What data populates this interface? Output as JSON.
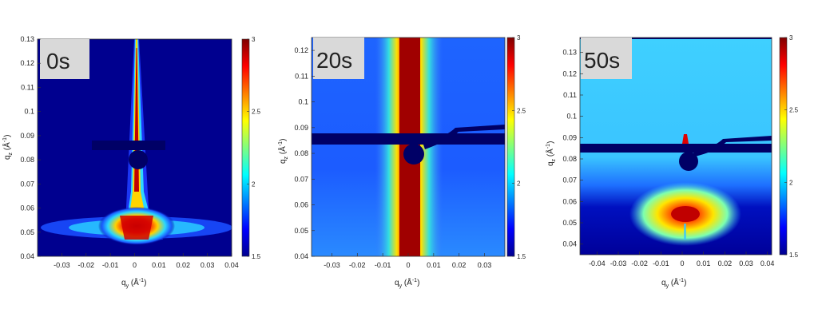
{
  "chart_data": [
    {
      "type": "heatmap",
      "time_label": "0s",
      "xlabel": "q",
      "xlabel_sub": "y",
      "xlabel_unit_pre": " (Å",
      "xlabel_unit_sup": "-1",
      "xlabel_unit_post": ")",
      "ylabel": "q",
      "ylabel_sub": "z",
      "ylabel_unit_pre": " (Å",
      "ylabel_unit_sup": "-1",
      "ylabel_unit_post": ")",
      "xlim": [
        -0.04,
        0.04
      ],
      "ylim": [
        0.04,
        0.13
      ],
      "xticks": [
        "-0.03",
        "-0.02",
        "-0.01",
        "0",
        "0.01",
        "0.02",
        "0.03",
        "0.04"
      ],
      "xtick_values": [
        -0.03,
        -0.02,
        -0.01,
        0,
        0.01,
        0.02,
        0.03,
        0.04
      ],
      "yticks": [
        "0.04",
        "0.05",
        "0.06",
        "0.07",
        "0.08",
        "0.09",
        "0.1",
        "0.11",
        "0.12",
        "0.13"
      ],
      "ytick_values": [
        0.04,
        0.05,
        0.06,
        0.07,
        0.08,
        0.09,
        0.1,
        0.11,
        0.12,
        0.13
      ],
      "colorbar": {
        "min": 1.5,
        "max": 3,
        "ticks": [
          "1.5",
          "2",
          "2.5",
          "3"
        ],
        "tick_values": [
          1.5,
          2,
          2.5,
          3
        ]
      },
      "pattern": "vertical rod with intense peak at qz≈0.05, beamstop at qz≈0.08"
    },
    {
      "type": "heatmap",
      "time_label": "20s",
      "xlabel": "q",
      "xlabel_sub": "y",
      "xlabel_unit_pre": " (Å",
      "xlabel_unit_sup": "-1",
      "xlabel_unit_post": ")",
      "ylabel": "q",
      "ylabel_sub": "z",
      "ylabel_unit_pre": " (Å",
      "ylabel_unit_sup": "-1",
      "ylabel_unit_post": ")",
      "xlim": [
        -0.038,
        0.038
      ],
      "ylim": [
        0.04,
        0.125
      ],
      "xticks": [
        "-0.03",
        "-0.02",
        "-0.01",
        "0",
        "0.01",
        "0.02",
        "0.03"
      ],
      "xtick_values": [
        -0.03,
        -0.02,
        -0.01,
        0,
        0.01,
        0.02,
        0.03
      ],
      "yticks": [
        "0.04",
        "0.05",
        "0.06",
        "0.07",
        "0.08",
        "0.09",
        "0.1",
        "0.11",
        "0.12"
      ],
      "ytick_values": [
        0.04,
        0.05,
        0.06,
        0.07,
        0.08,
        0.09,
        0.1,
        0.11,
        0.12
      ],
      "colorbar": {
        "min": 1.5,
        "max": 3,
        "ticks": [
          "1.5",
          "2",
          "2.5",
          "3"
        ],
        "tick_values": [
          1.5,
          2,
          2.5,
          3
        ]
      },
      "pattern": "broad saturated vertical rod at qy≈0, beamstop at qz≈0.08"
    },
    {
      "type": "heatmap",
      "time_label": "50s",
      "xlabel": "q",
      "xlabel_sub": "y",
      "xlabel_unit_pre": " (Å",
      "xlabel_unit_sup": "-1",
      "xlabel_unit_post": ")",
      "ylabel": "q",
      "ylabel_sub": "z",
      "ylabel_unit_pre": " (Å",
      "ylabel_unit_sup": "-1",
      "ylabel_unit_post": ")",
      "xlim": [
        -0.048,
        0.042
      ],
      "ylim": [
        0.035,
        0.137
      ],
      "xticks": [
        "-0.04",
        "-0.03",
        "-0.02",
        "-0.01",
        "0",
        "0.01",
        "0.02",
        "0.03",
        "0.04"
      ],
      "xtick_values": [
        -0.04,
        -0.03,
        -0.02,
        -0.01,
        0,
        0.01,
        0.02,
        0.03,
        0.04
      ],
      "yticks": [
        "0.04",
        "0.05",
        "0.06",
        "0.07",
        "0.08",
        "0.09",
        "0.1",
        "0.11",
        "0.12",
        "0.13"
      ],
      "ytick_values": [
        0.04,
        0.05,
        0.06,
        0.07,
        0.08,
        0.09,
        0.1,
        0.11,
        0.12,
        0.13
      ],
      "colorbar": {
        "min": 1.5,
        "max": 3,
        "ticks": [
          "1.5",
          "2",
          "2.5",
          "3"
        ],
        "tick_values": [
          1.5,
          2,
          2.5,
          3
        ]
      },
      "pattern": "diffuse background, bright spot at qz≈0.052 near qy≈0, beamstop at qz≈0.08"
    }
  ],
  "colors": {
    "background_dark": "#00008f",
    "background_mid": "#1a6fff",
    "background_cyan": "#39c8ff",
    "peak": "#8b0000",
    "label_box": "#d9d9d9"
  }
}
